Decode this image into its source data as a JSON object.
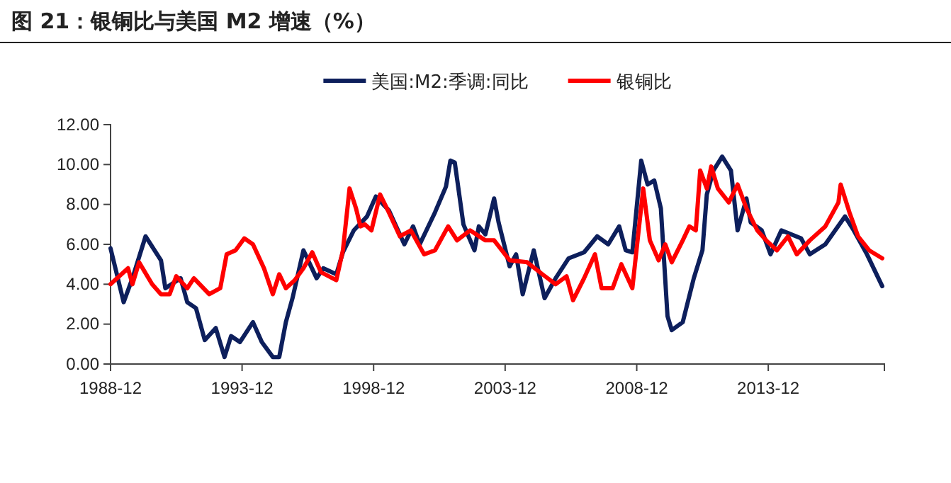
{
  "chart_data": {
    "type": "line",
    "title": "图 21：银铜比与美国 M2 增速（%）",
    "legend": "top",
    "grid": false,
    "line_style": "solid",
    "marker": "none",
    "xlim": [
      "1988-12",
      "2018-05"
    ],
    "xticks": [
      "1988-12",
      "1993-12",
      "1998-12",
      "2003-12",
      "2008-12",
      "2013-12"
    ],
    "ylim": [
      0,
      12
    ],
    "yticks": [
      {
        "value": 0,
        "label": "0.00"
      },
      {
        "value": 2,
        "label": "2.00"
      },
      {
        "value": 4,
        "label": "4.00"
      },
      {
        "value": 6,
        "label": "6.00"
      },
      {
        "value": 8,
        "label": "8.00"
      },
      {
        "value": 10,
        "label": "10.00"
      },
      {
        "value": 12,
        "label": "12.00"
      }
    ],
    "series": [
      {
        "name": "美国:M2:季调:同比",
        "color": "#0d1f5c",
        "x": [
          "1988-12",
          "1989-06",
          "1989-10",
          "1990-04",
          "1990-11",
          "1991-01",
          "1991-08",
          "1991-11",
          "1992-03",
          "1992-07",
          "1992-12",
          "1993-04",
          "1993-07",
          "1993-11",
          "1994-05",
          "1994-09",
          "1995-02",
          "1995-05",
          "1995-08",
          "1995-11",
          "1996-04",
          "1996-10",
          "1997-01",
          "1997-07",
          "1997-10",
          "1998-03",
          "1998-09",
          "1999-01",
          "1999-07",
          "2000-02",
          "2000-06",
          "2000-09",
          "2001-04",
          "2001-09",
          "2001-11",
          "2002-01",
          "2002-05",
          "2002-10",
          "2002-12",
          "2003-03",
          "2003-07",
          "2003-09",
          "2004-02",
          "2004-05",
          "2004-08",
          "2005-01",
          "2005-06",
          "2005-11",
          "2006-05",
          "2006-12",
          "2007-06",
          "2007-11",
          "2008-04",
          "2008-07",
          "2008-10",
          "2009-02",
          "2009-05",
          "2009-08",
          "2009-11",
          "2010-02",
          "2010-04",
          "2010-09",
          "2011-02",
          "2011-06",
          "2011-08",
          "2011-11",
          "2012-03",
          "2012-07",
          "2012-10",
          "2013-02",
          "2013-04",
          "2013-09",
          "2014-01",
          "2014-06",
          "2015-03",
          "2015-07",
          "2016-02",
          "2016-11",
          "2017-03",
          "2017-09",
          "2018-04"
        ],
        "values": [
          5.8,
          3.1,
          4.3,
          6.4,
          5.2,
          3.8,
          4.3,
          3.1,
          2.8,
          1.2,
          1.8,
          0.35,
          1.4,
          1.1,
          2.1,
          1.1,
          0.35,
          0.35,
          2.1,
          3.3,
          5.7,
          4.3,
          4.8,
          4.5,
          5.6,
          6.7,
          7.4,
          8.4,
          7.7,
          6.0,
          6.9,
          6.0,
          7.6,
          8.9,
          10.2,
          10.1,
          7.0,
          5.7,
          6.9,
          6.5,
          8.3,
          7.1,
          4.9,
          5.5,
          3.5,
          5.7,
          3.3,
          4.3,
          5.3,
          5.6,
          6.4,
          6.0,
          6.9,
          5.7,
          5.6,
          10.2,
          9.0,
          9.2,
          7.8,
          2.4,
          1.7,
          2.1,
          4.3,
          5.7,
          8.5,
          9.7,
          10.4,
          9.7,
          6.7,
          8.3,
          7.1,
          6.7,
          5.5,
          6.7,
          6.3,
          5.5,
          6.0,
          7.4,
          6.7,
          5.5,
          3.9
        ]
      },
      {
        "name": "银铜比",
        "color": "#ff0000",
        "x": [
          "1988-12",
          "1989-08",
          "1989-10",
          "1990-01",
          "1990-07",
          "1990-11",
          "1991-03",
          "1991-06",
          "1991-11",
          "1992-02",
          "1992-09",
          "1993-02",
          "1993-05",
          "1993-09",
          "1994-01",
          "1994-05",
          "1994-10",
          "1995-02",
          "1995-05",
          "1995-08",
          "1995-12",
          "1996-04",
          "1996-08",
          "1996-12",
          "1997-07",
          "1997-10",
          "1998-01",
          "1998-04",
          "1998-06",
          "1998-08",
          "1998-11",
          "1999-03",
          "1999-07",
          "1999-12",
          "2000-05",
          "2000-11",
          "2001-04",
          "2001-10",
          "2002-02",
          "2002-08",
          "2003-03",
          "2003-07",
          "2004-02",
          "2004-10",
          "2005-05",
          "2005-11",
          "2006-04",
          "2006-07",
          "2006-12",
          "2007-05",
          "2007-08",
          "2008-01",
          "2008-05",
          "2008-10",
          "2009-03",
          "2009-06",
          "2009-10",
          "2010-01",
          "2010-04",
          "2010-09",
          "2010-12",
          "2011-03",
          "2011-05",
          "2011-08",
          "2011-10",
          "2012-01",
          "2012-06",
          "2012-10",
          "2013-02",
          "2013-07",
          "2013-11",
          "2014-04",
          "2014-09",
          "2015-01",
          "2015-07",
          "2016-02",
          "2016-08",
          "2016-09",
          "2017-01",
          "2017-05",
          "2017-10",
          "2018-04"
        ],
        "values": [
          4.0,
          4.8,
          4.0,
          5.1,
          4.0,
          3.5,
          3.5,
          4.4,
          3.8,
          4.3,
          3.5,
          3.8,
          5.5,
          5.7,
          6.3,
          6.0,
          4.8,
          3.5,
          4.5,
          3.8,
          4.2,
          4.8,
          5.6,
          4.6,
          4.2,
          5.7,
          8.8,
          7.8,
          6.9,
          7.0,
          6.7,
          8.5,
          7.6,
          6.4,
          6.7,
          5.5,
          5.7,
          6.9,
          6.2,
          6.7,
          6.2,
          6.2,
          5.2,
          5.1,
          4.5,
          4.0,
          4.4,
          3.2,
          4.3,
          5.5,
          3.8,
          3.8,
          5.0,
          3.8,
          8.8,
          6.2,
          5.2,
          6.0,
          5.1,
          6.2,
          6.9,
          6.7,
          9.7,
          8.8,
          9.9,
          8.8,
          8.1,
          9.0,
          7.8,
          6.7,
          6.2,
          5.7,
          6.4,
          5.5,
          6.2,
          6.9,
          8.1,
          9.0,
          7.6,
          6.4,
          5.7,
          5.3
        ]
      }
    ]
  }
}
